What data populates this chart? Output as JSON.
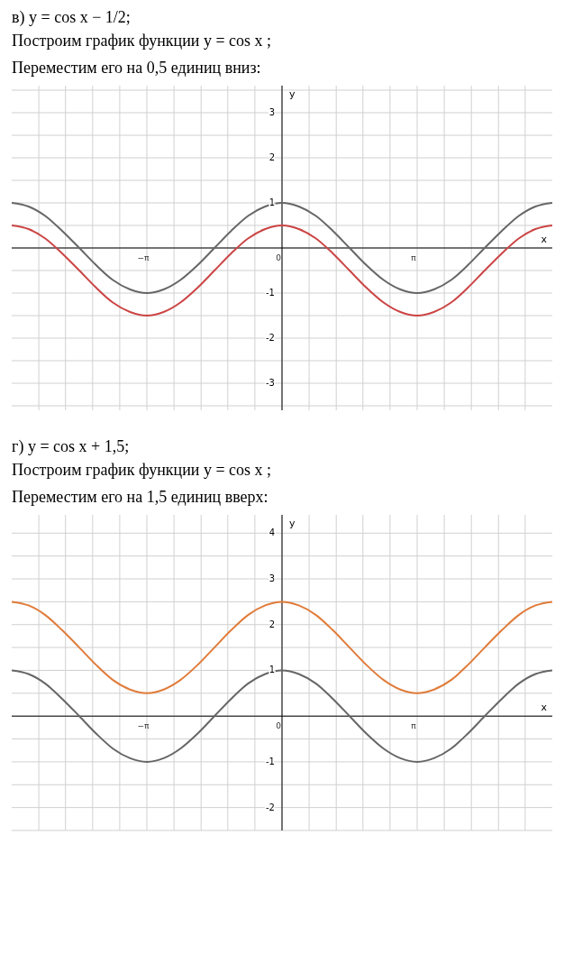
{
  "chart_data": [
    {
      "type": "line",
      "title": "в) y = cos x − 1/2;",
      "subtitle": "Построим график функции y = cos x ;",
      "annotations": [
        "Переместим его на 0,5 единиц вниз:"
      ],
      "xlabel": "x",
      "ylabel": "y",
      "grid": true,
      "x": [
        -6.28,
        -5.89,
        -5.5,
        -5.11,
        -4.71,
        -4.32,
        -3.93,
        -3.53,
        -3.14,
        -2.75,
        -2.36,
        -1.96,
        -1.57,
        -1.18,
        -0.79,
        -0.39,
        0,
        0.39,
        0.79,
        1.18,
        1.57,
        1.96,
        2.36,
        2.75,
        3.14,
        3.53,
        3.93,
        4.32,
        4.71,
        5.11,
        5.5,
        5.89,
        6.28
      ],
      "series": [
        {
          "color": "#666666",
          "values": [
            1,
            0.92,
            0.71,
            0.38,
            0,
            -0.38,
            -0.71,
            -0.92,
            -1,
            -0.92,
            -0.71,
            -0.38,
            0,
            0.38,
            0.71,
            0.92,
            1,
            0.92,
            0.71,
            0.38,
            0,
            -0.38,
            -0.71,
            -0.92,
            -1,
            -0.92,
            -0.71,
            -0.38,
            0,
            0.38,
            0.71,
            0.92,
            1
          ]
        },
        {
          "color": "#cc4444",
          "values": [
            0.5,
            0.42,
            0.21,
            -0.12,
            -0.5,
            -0.88,
            -1.21,
            -1.42,
            -1.5,
            -1.42,
            -1.21,
            -0.88,
            -0.5,
            -0.12,
            0.21,
            0.42,
            0.5,
            0.42,
            0.21,
            -0.12,
            -0.5,
            -0.88,
            -1.21,
            -1.42,
            -1.5,
            -1.42,
            -1.21,
            -0.88,
            -0.5,
            -0.12,
            0.21,
            0.42,
            0.5
          ]
        }
      ],
      "xlim": [
        -6.28,
        6.28
      ],
      "ylim": [
        -3.6,
        3.6
      ],
      "xticks": [
        {
          "value": -5.65,
          "label": null
        },
        {
          "value": -5.03,
          "label": null
        },
        {
          "value": -4.4,
          "label": null
        },
        {
          "value": -3.77,
          "label": null
        },
        {
          "value": -3.14,
          "label": "−π"
        },
        {
          "value": -2.51,
          "label": null
        },
        {
          "value": -1.88,
          "label": null
        },
        {
          "value": -1.26,
          "label": null
        },
        {
          "value": -0.63,
          "label": null
        },
        0,
        {
          "value": 0.63,
          "label": null
        },
        {
          "value": 1.26,
          "label": null
        },
        {
          "value": 1.88,
          "label": null
        },
        {
          "value": 2.51,
          "label": null
        },
        {
          "value": 3.14,
          "label": "π"
        },
        {
          "value": 3.77,
          "label": null
        },
        {
          "value": 4.4,
          "label": null
        },
        {
          "value": 5.03,
          "label": null
        },
        {
          "value": 5.65,
          "label": null
        }
      ],
      "yticks": [
        {
          "value": -3.5,
          "label": null
        },
        -3,
        {
          "value": -2.5,
          "label": null
        },
        -2,
        {
          "value": -1.5,
          "label": null
        },
        -1,
        {
          "value": -0.5,
          "label": null
        },
        {
          "value": 0,
          "label": null
        },
        {
          "value": 0.5,
          "label": null
        },
        1,
        {
          "value": 1.5,
          "label": null
        },
        2,
        {
          "value": 2.5,
          "label": null
        },
        3,
        {
          "value": 3.5,
          "label": null
        }
      ]
    },
    {
      "type": "line",
      "title": "г) y = cos x + 1,5;",
      "subtitle": "Построим график функции y = cos x ;",
      "annotations": [
        "Переместим его на 1,5 единиц вверх:"
      ],
      "xlabel": "x",
      "ylabel": "y",
      "grid": true,
      "x": [
        -6.28,
        -5.89,
        -5.5,
        -5.11,
        -4.71,
        -4.32,
        -3.93,
        -3.53,
        -3.14,
        -2.75,
        -2.36,
        -1.96,
        -1.57,
        -1.18,
        -0.79,
        -0.39,
        0,
        0.39,
        0.79,
        1.18,
        1.57,
        1.96,
        2.36,
        2.75,
        3.14,
        3.53,
        3.93,
        4.32,
        4.71,
        5.11,
        5.5,
        5.89,
        6.28
      ],
      "series": [
        {
          "color": "#666666",
          "values": [
            1,
            0.92,
            0.71,
            0.38,
            0,
            -0.38,
            -0.71,
            -0.92,
            -1,
            -0.92,
            -0.71,
            -0.38,
            0,
            0.38,
            0.71,
            0.92,
            1,
            0.92,
            0.71,
            0.38,
            0,
            -0.38,
            -0.71,
            -0.92,
            -1,
            -0.92,
            -0.71,
            -0.38,
            0,
            0.38,
            0.71,
            0.92,
            1
          ]
        },
        {
          "color": "#e07b39",
          "values": [
            2.5,
            2.42,
            2.21,
            1.88,
            1.5,
            1.12,
            0.79,
            0.58,
            0.5,
            0.58,
            0.79,
            1.12,
            1.5,
            1.88,
            2.21,
            2.42,
            2.5,
            2.42,
            2.21,
            1.88,
            1.5,
            1.12,
            0.79,
            0.58,
            0.5,
            0.58,
            0.79,
            1.12,
            1.5,
            1.88,
            2.21,
            2.42,
            2.5
          ]
        }
      ],
      "xlim": [
        -6.28,
        6.28
      ],
      "ylim": [
        -2.5,
        4.4
      ],
      "xticks": [
        {
          "value": -5.65,
          "label": null
        },
        {
          "value": -5.03,
          "label": null
        },
        {
          "value": -4.4,
          "label": null
        },
        {
          "value": -3.77,
          "label": null
        },
        {
          "value": -3.14,
          "label": "−π"
        },
        {
          "value": -2.51,
          "label": null
        },
        {
          "value": -1.88,
          "label": null
        },
        {
          "value": -1.26,
          "label": null
        },
        {
          "value": -0.63,
          "label": null
        },
        0,
        {
          "value": 0.63,
          "label": null
        },
        {
          "value": 1.26,
          "label": null
        },
        {
          "value": 1.88,
          "label": null
        },
        {
          "value": 2.51,
          "label": null
        },
        {
          "value": 3.14,
          "label": "π"
        },
        {
          "value": 3.77,
          "label": null
        },
        {
          "value": 4.4,
          "label": null
        },
        {
          "value": 5.03,
          "label": null
        },
        {
          "value": 5.65,
          "label": null
        }
      ],
      "yticks": [
        {
          "value": -2.5,
          "label": null
        },
        -2,
        {
          "value": -1.5,
          "label": null
        },
        -1,
        {
          "value": -0.5,
          "label": null
        },
        {
          "value": 0,
          "label": null
        },
        {
          "value": 0.5,
          "label": null
        },
        1,
        {
          "value": 1.5,
          "label": null
        },
        2,
        {
          "value": 2.5,
          "label": null
        },
        3,
        {
          "value": 3.5,
          "label": null
        },
        4
      ]
    }
  ]
}
